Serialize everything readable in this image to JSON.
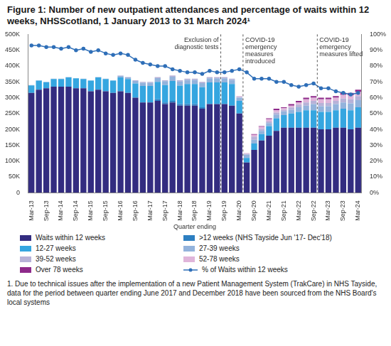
{
  "chart_data": {
    "type": "bar",
    "title": "Figure 1: Number of new outpatient attendances and percentage of waits within 12 weeks, NHSScotland, 1 January 2013 to 31 March 2024¹",
    "x_label": "Quarter ending",
    "footnote": "1. Due to technical issues after the implementation of a new Patient Management System (TrakCare) in NHS Tayside, data for the period between quarter ending June 2017 and December 2018 have been sourced from the NHS Board's local systems",
    "stacked": true,
    "grid": false,
    "categories": [
      "Mar-13",
      null,
      "Sep-13",
      null,
      "Mar-14",
      null,
      "Sep-14",
      null,
      "Mar-15",
      null,
      "Sep-15",
      null,
      "Mar-16",
      null,
      "Sep-16",
      null,
      "Mar-17",
      null,
      "Sep-17",
      null,
      "Mar-18",
      null,
      "Sep-18",
      null,
      "Mar-19",
      null,
      "Sep-19",
      null,
      "Mar-20",
      null,
      "Sep-20",
      null,
      "Mar-21",
      null,
      "Sep-21",
      null,
      "Mar-22",
      null,
      "Sep-22",
      null,
      "Mar-23",
      null,
      "Sep-23",
      null,
      "Mar-24"
    ],
    "ylim": [
      0,
      500000
    ],
    "yticks": [
      0,
      {
        "value": 50000,
        "label": "50K"
      },
      {
        "value": 100000,
        "label": "100K"
      },
      {
        "value": 150000,
        "label": "150K"
      },
      {
        "value": 200000,
        "label": "200K"
      },
      {
        "value": 250000,
        "label": "250K"
      },
      {
        "value": 300000,
        "label": "300K"
      },
      {
        "value": 350000,
        "label": "350K"
      },
      {
        "value": 400000,
        "label": "400K"
      },
      {
        "value": 450000,
        "label": "450K"
      },
      {
        "value": 500000,
        "label": "500K"
      }
    ],
    "y2lim": [
      0,
      100
    ],
    "y2ticks": [
      {
        "value": 0,
        "label": "0%"
      },
      {
        "value": 10,
        "label": "10%"
      },
      {
        "value": 20,
        "label": "20%"
      },
      {
        "value": 30,
        "label": "30%"
      },
      {
        "value": 40,
        "label": "40%"
      },
      {
        "value": 50,
        "label": "50%"
      },
      {
        "value": 60,
        "label": "60%"
      },
      {
        "value": 70,
        "label": "70%"
      },
      {
        "value": 80,
        "label": "80%"
      },
      {
        "value": 90,
        "label": "90%"
      },
      {
        "value": 100,
        "label": "100%"
      }
    ],
    "annotations": [
      {
        "x": 25.5,
        "text": "Exclusion of diagnostic tests"
      },
      {
        "x": 28.5,
        "text": "COVID-19 emergency measures introduced"
      },
      {
        "x": 38.5,
        "text": "COVID-19 emergency measures lifted"
      }
    ],
    "series": [
      {
        "name": "Waits within 12 weeks",
        "type": "bar",
        "color": "#332c80",
        "values": [
          315000,
          325000,
          330000,
          335000,
          335000,
          335000,
          330000,
          330000,
          320000,
          325000,
          320000,
          315000,
          320000,
          315000,
          300000,
          285000,
          285000,
          290000,
          280000,
          285000,
          275000,
          275000,
          275000,
          265000,
          280000,
          280000,
          280000,
          275000,
          250000,
          95000,
          135000,
          165000,
          180000,
          195000,
          205000,
          205000,
          205000,
          205000,
          205000,
          200000,
          200000,
          205000,
          205000,
          200000,
          205000
        ]
      },
      {
        "name": ">12 weeks (NHS Tayside Jun '17- Dec'18)",
        "type": "bar",
        "color": "#2d7fc1",
        "values": [
          0,
          0,
          0,
          0,
          0,
          0,
          0,
          0,
          0,
          0,
          0,
          0,
          0,
          0,
          0,
          0,
          0,
          5000,
          5000,
          5000,
          5000,
          5000,
          5000,
          5000,
          0,
          0,
          0,
          0,
          0,
          0,
          0,
          0,
          0,
          0,
          0,
          0,
          0,
          0,
          0,
          0,
          0,
          0,
          0,
          0,
          0
        ]
      },
      {
        "name": "12-27 weeks",
        "type": "bar",
        "color": "#35a6e0",
        "values": [
          24000,
          29000,
          19000,
          24000,
          24000,
          29000,
          31000,
          29000,
          34000,
          39000,
          39000,
          39000,
          44000,
          44000,
          45000,
          52000,
          52000,
          55000,
          55000,
          63000,
          58000,
          63000,
          63000,
          63000,
          68000,
          68000,
          68000,
          68000,
          40000,
          15000,
          20000,
          20000,
          30000,
          40000,
          40000,
          45000,
          50000,
          55000,
          55000,
          55000,
          55000,
          55000,
          60000,
          60000,
          65000
        ]
      },
      {
        "name": "27-39 weeks",
        "type": "bar",
        "color": "#93b3dc",
        "values": [
          1000,
          1000,
          1000,
          1000,
          1000,
          1000,
          1000,
          1000,
          1000,
          1000,
          1000,
          1000,
          5000,
          5000,
          8000,
          10000,
          10000,
          12000,
          12000,
          13000,
          13000,
          13000,
          13000,
          13000,
          13000,
          13000,
          13000,
          13000,
          10000,
          10000,
          12000,
          10000,
          10000,
          12000,
          12000,
          12000,
          15000,
          15000,
          20000,
          18000,
          18000,
          20000,
          20000,
          22000,
          22000
        ]
      },
      {
        "name": "39-52 weeks",
        "type": "bar",
        "color": "#b7b2d8",
        "values": [
          0,
          0,
          0,
          0,
          0,
          0,
          0,
          0,
          0,
          0,
          0,
          0,
          1000,
          1000,
          2000,
          3000,
          3000,
          3000,
          3000,
          4000,
          4000,
          4000,
          4000,
          4000,
          4000,
          4000,
          4000,
          4000,
          3000,
          3000,
          10000,
          6000,
          5000,
          6000,
          5000,
          7000,
          8000,
          10000,
          10000,
          10000,
          10000,
          10000,
          12000,
          13000,
          13000
        ]
      },
      {
        "name": "52-78 weeks",
        "type": "bar",
        "color": "#e0b5da",
        "values": [
          0,
          0,
          0,
          0,
          0,
          0,
          0,
          0,
          0,
          0,
          0,
          0,
          0,
          0,
          0,
          0,
          0,
          0,
          0,
          0,
          0,
          0,
          0,
          0,
          0,
          0,
          0,
          0,
          2000,
          2000,
          6000,
          7000,
          7000,
          7000,
          5000,
          6000,
          7000,
          10000,
          10000,
          12000,
          12000,
          10000,
          12000,
          13000,
          13000
        ]
      },
      {
        "name": "Over 78 weeks",
        "type": "bar",
        "color": "#8e2a8a",
        "values": [
          0,
          0,
          0,
          0,
          0,
          0,
          0,
          0,
          0,
          0,
          0,
          0,
          0,
          0,
          0,
          0,
          0,
          0,
          0,
          0,
          0,
          0,
          0,
          0,
          0,
          0,
          0,
          0,
          0,
          0,
          2000,
          2000,
          3000,
          5000,
          3000,
          5000,
          5000,
          5000,
          5000,
          5000,
          5000,
          5000,
          6000,
          7000,
          7000
        ]
      },
      {
        "name": "% of Waits within 12 weeks",
        "type": "line",
        "axis": "y2",
        "color": "#2f6fb8",
        "marker": "circle",
        "values": [
          93,
          93,
          92,
          92,
          91,
          92,
          90,
          91,
          89,
          90,
          88,
          87,
          88,
          87,
          84,
          82,
          81,
          80,
          80,
          78,
          77,
          76,
          76,
          75,
          77,
          76,
          76,
          77,
          78,
          76,
          72,
          72,
          72,
          70,
          70,
          68,
          67,
          68,
          69,
          66,
          66,
          64,
          63,
          62,
          63
        ]
      }
    ]
  }
}
